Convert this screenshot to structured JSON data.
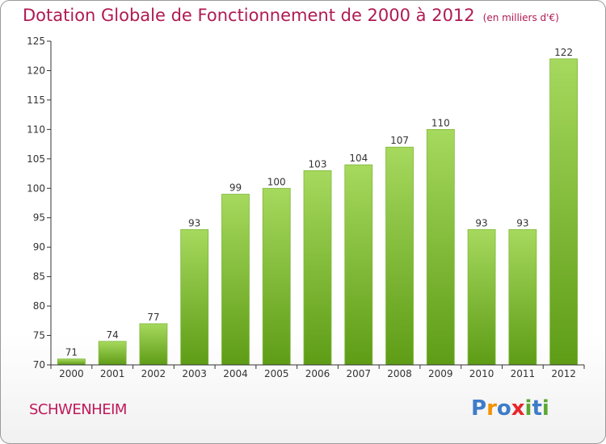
{
  "title": "Dotation Globale de Fonctionnement de 2000 à 2012",
  "subtitle": "(en milliers d'€)",
  "commune": "SCHWENHEIM",
  "logo": {
    "letters": [
      "P",
      "r",
      "o",
      "x",
      "i",
      "t",
      "i"
    ],
    "colors": [
      "#3d7cc9",
      "#f39200",
      "#3d7cc9",
      "#e8262c",
      "#5aa832",
      "#3d7cc9",
      "#5aa832"
    ]
  },
  "colors": {
    "bar_light": "#a6d95e",
    "bar_dark": "#5e9c16",
    "axis": "#333333",
    "grid": "#cccccc",
    "title": "#b01a52"
  },
  "chart_data": {
    "type": "bar",
    "categories": [
      "2000",
      "2001",
      "2002",
      "2003",
      "2004",
      "2005",
      "2006",
      "2007",
      "2008",
      "2009",
      "2010",
      "2011",
      "2012"
    ],
    "values": [
      71,
      74,
      77,
      93,
      99,
      100,
      103,
      104,
      107,
      110,
      93,
      93,
      122
    ],
    "data_labels": [
      "71",
      "74",
      "77",
      "93",
      "99",
      "100",
      "103",
      "104",
      "107",
      "110",
      "93",
      "93",
      "122"
    ],
    "yticks": [
      70,
      75,
      80,
      85,
      90,
      95,
      100,
      105,
      110,
      115,
      120,
      125
    ],
    "ylim": [
      70,
      125
    ],
    "grid": false,
    "legend": "none"
  }
}
